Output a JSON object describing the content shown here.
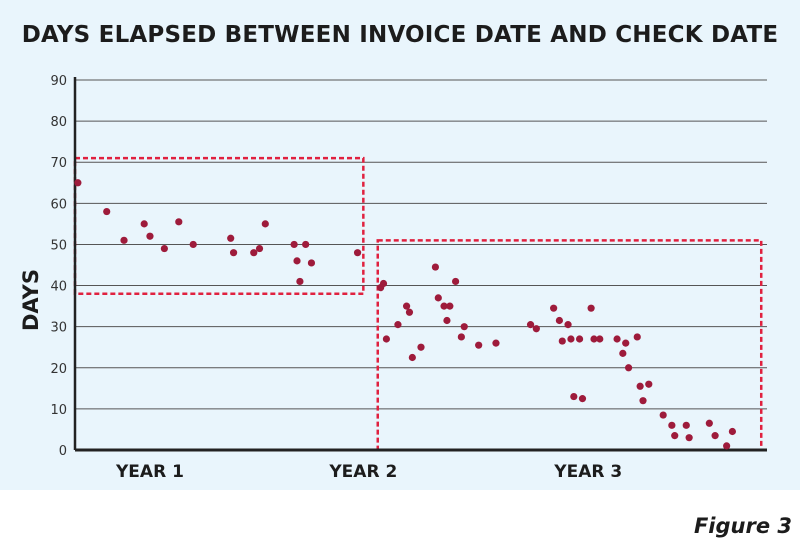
{
  "chart_data": {
    "type": "scatter",
    "title": "DAYS ELAPSED BETWEEN INVOICE DATE AND CHECK DATE",
    "ylabel": "DAYS",
    "xlabel": "",
    "ylim": [
      0,
      90
    ],
    "xlim": [
      0,
      120
    ],
    "y_ticks": [
      0,
      10,
      20,
      30,
      40,
      50,
      60,
      70,
      80,
      90
    ],
    "x_tick_labels": [
      {
        "label": "YEAR 1",
        "x": 13
      },
      {
        "label": "YEAR 2",
        "x": 50
      },
      {
        "label": "YEAR 3",
        "x": 89
      }
    ],
    "grid": "horizontal",
    "point_color": "#9e1b3b",
    "highlight_color": "#e0213f",
    "highlight_boxes": [
      {
        "x_range": [
          0,
          50
        ],
        "y_range": [
          38,
          71
        ]
      },
      {
        "x_range": [
          52.5,
          119
        ],
        "y_range": [
          0,
          51
        ]
      }
    ],
    "series": [
      {
        "points": [
          [
            0.5,
            65
          ],
          [
            5.5,
            58
          ],
          [
            8.5,
            51
          ],
          [
            12,
            55
          ],
          [
            13,
            52
          ],
          [
            15.5,
            49
          ],
          [
            18,
            55.5
          ],
          [
            20.5,
            50
          ],
          [
            27,
            51.5
          ],
          [
            27.5,
            48
          ],
          [
            31,
            48
          ],
          [
            32,
            49
          ],
          [
            33,
            55
          ],
          [
            38,
            50
          ],
          [
            38.5,
            46
          ],
          [
            39,
            41
          ],
          [
            40,
            50
          ],
          [
            41,
            45.5
          ],
          [
            49,
            48
          ],
          [
            53,
            39.5
          ],
          [
            53.5,
            40.5
          ],
          [
            54,
            27
          ],
          [
            56,
            30.5
          ],
          [
            57.5,
            35
          ],
          [
            58,
            33.5
          ],
          [
            58.5,
            22.5
          ],
          [
            60,
            25
          ],
          [
            62.5,
            44.5
          ],
          [
            63,
            37
          ],
          [
            64,
            35
          ],
          [
            64.5,
            31.5
          ],
          [
            65,
            35
          ],
          [
            66,
            41
          ],
          [
            67,
            27.5
          ],
          [
            67.5,
            30
          ],
          [
            70,
            25.5
          ],
          [
            73,
            26
          ],
          [
            79,
            30.5
          ],
          [
            80,
            29.5
          ],
          [
            83,
            34.5
          ],
          [
            84,
            31.5
          ],
          [
            84.5,
            26.5
          ],
          [
            85.5,
            30.5
          ],
          [
            86,
            27
          ],
          [
            86.5,
            13
          ],
          [
            87.5,
            27
          ],
          [
            88,
            12.5
          ],
          [
            89.5,
            34.5
          ],
          [
            90,
            27
          ],
          [
            91,
            27
          ],
          [
            94,
            27
          ],
          [
            95,
            23.5
          ],
          [
            95.5,
            26
          ],
          [
            96,
            20
          ],
          [
            97.5,
            27.5
          ],
          [
            98,
            15.5
          ],
          [
            98.5,
            12
          ],
          [
            99.5,
            16
          ],
          [
            102,
            8.5
          ],
          [
            103.5,
            6
          ],
          [
            104,
            3.5
          ],
          [
            106,
            6
          ],
          [
            106.5,
            3
          ],
          [
            110,
            6.5
          ],
          [
            111,
            3.5
          ],
          [
            113,
            1
          ],
          [
            114,
            4.5
          ]
        ]
      }
    ]
  },
  "figure_caption": "Figure 3"
}
